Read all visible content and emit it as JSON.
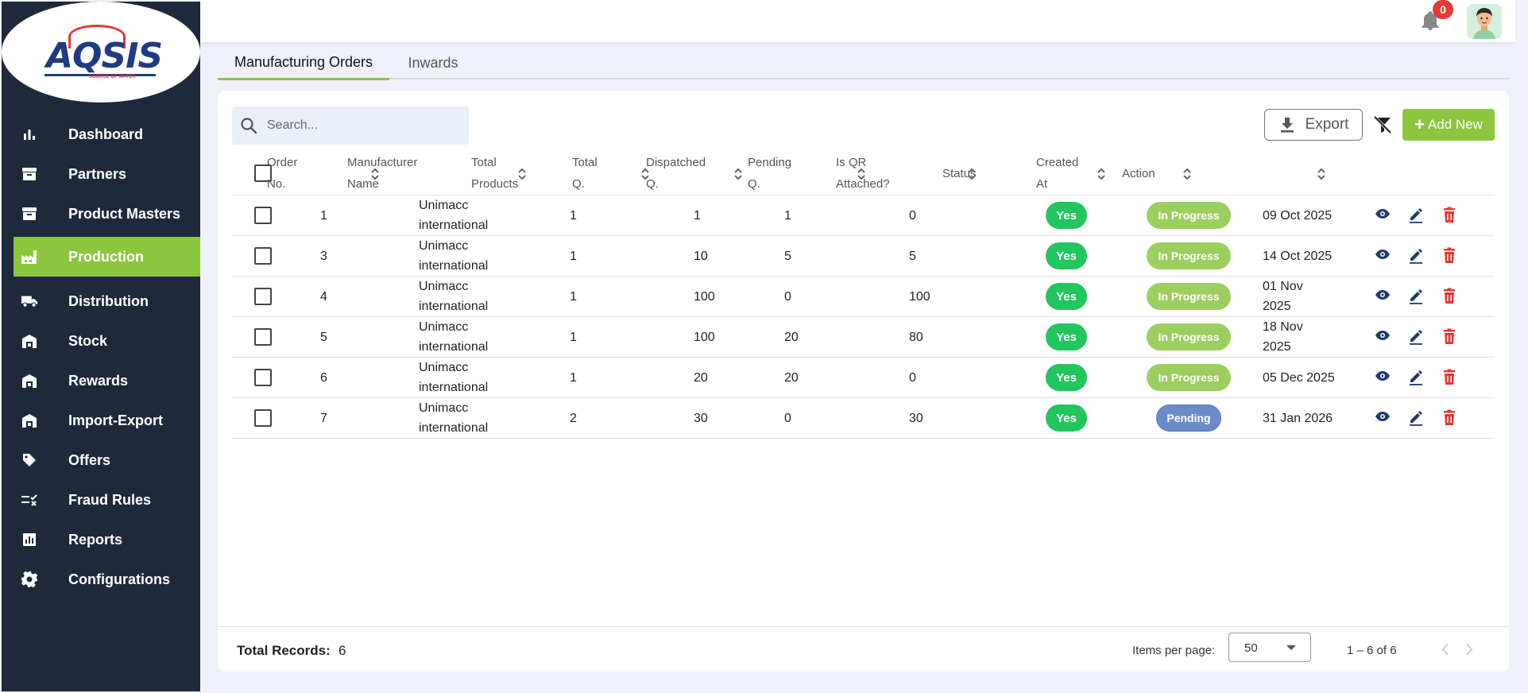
{
  "brand": {
    "logo_text": "AQSIS",
    "logo_tagline": "SOURCE OF WATER"
  },
  "sidebar": {
    "items": [
      {
        "label": "Dashboard",
        "icon": "bar-chart-icon",
        "active": false
      },
      {
        "label": "Partners",
        "icon": "archive-icon",
        "active": false
      },
      {
        "label": "Product Masters",
        "icon": "archive-icon",
        "active": false
      },
      {
        "label": "Production",
        "icon": "factory-icon",
        "active": true
      },
      {
        "label": "Distribution",
        "icon": "truck-icon",
        "active": false
      },
      {
        "label": "Stock",
        "icon": "warehouse-icon",
        "active": false
      },
      {
        "label": "Rewards",
        "icon": "warehouse-icon",
        "active": false
      },
      {
        "label": "Import-Export",
        "icon": "warehouse-icon",
        "active": false
      },
      {
        "label": "Offers",
        "icon": "tag-icon",
        "active": false
      },
      {
        "label": "Fraud Rules",
        "icon": "rule-list-icon",
        "active": false
      },
      {
        "label": "Reports",
        "icon": "report-icon",
        "active": false
      },
      {
        "label": "Configurations",
        "icon": "gear-icon",
        "active": false
      }
    ]
  },
  "header": {
    "notification_count": "0"
  },
  "tabs": [
    {
      "label": "Manufacturing Orders",
      "active": true
    },
    {
      "label": "Inwards",
      "active": false
    }
  ],
  "toolbar": {
    "search_placeholder": "Search...",
    "export_label": "Export",
    "add_label": "Add New"
  },
  "table": {
    "headers": [
      {
        "line1": "Order",
        "line2": "No."
      },
      {
        "line1": "Manufacturer",
        "line2": "Name"
      },
      {
        "line1": "Total",
        "line2": "Products"
      },
      {
        "line1": "Total",
        "line2": "Q."
      },
      {
        "line1": "Dispatched",
        "line2": "Q."
      },
      {
        "line1": "Pending",
        "line2": "Q."
      },
      {
        "line1": "Is QR",
        "line2": "Attached?"
      },
      {
        "line1": "Status",
        "line2": ""
      },
      {
        "line1": "Created",
        "line2": "At"
      },
      {
        "line1": "Action",
        "line2": ""
      }
    ],
    "rows": [
      {
        "order_no": "1",
        "manufacturer_1": "Unimacc",
        "manufacturer_2": "international",
        "total_products": "1",
        "total_q": "1",
        "dispatched_q": "1",
        "pending_q": "0",
        "qr": "Yes",
        "status": "In Progress",
        "created_1": "09 Oct 2025",
        "created_2": ""
      },
      {
        "order_no": "3",
        "manufacturer_1": "Unimacc",
        "manufacturer_2": "international",
        "total_products": "1",
        "total_q": "10",
        "dispatched_q": "5",
        "pending_q": "5",
        "qr": "Yes",
        "status": "In Progress",
        "created_1": "14 Oct 2025",
        "created_2": ""
      },
      {
        "order_no": "4",
        "manufacturer_1": "Unimacc",
        "manufacturer_2": "international",
        "total_products": "1",
        "total_q": "100",
        "dispatched_q": "0",
        "pending_q": "100",
        "qr": "Yes",
        "status": "In Progress",
        "created_1": "01 Nov",
        "created_2": "2025"
      },
      {
        "order_no": "5",
        "manufacturer_1": "Unimacc",
        "manufacturer_2": "international",
        "total_products": "1",
        "total_q": "100",
        "dispatched_q": "20",
        "pending_q": "80",
        "qr": "Yes",
        "status": "In Progress",
        "created_1": "18 Nov",
        "created_2": "2025"
      },
      {
        "order_no": "6",
        "manufacturer_1": "Unimacc",
        "manufacturer_2": "international",
        "total_products": "1",
        "total_q": "20",
        "dispatched_q": "20",
        "pending_q": "0",
        "qr": "Yes",
        "status": "In Progress",
        "created_1": "05 Dec 2025",
        "created_2": ""
      },
      {
        "order_no": "7",
        "manufacturer_1": "Unimacc",
        "manufacturer_2": "international",
        "total_products": "2",
        "total_q": "30",
        "dispatched_q": "0",
        "pending_q": "30",
        "qr": "Yes",
        "status": "Pending",
        "created_1": "31 Jan 2026",
        "created_2": ""
      }
    ]
  },
  "footer": {
    "total_label": "Total Records:",
    "total_value": "6",
    "items_per_page_label": "Items per page:",
    "items_per_page_value": "50",
    "range": "1 – 6 of 6"
  },
  "colors": {
    "sidebar_bg": "#1e293b",
    "accent_green": "#8cc63f",
    "yes_green": "#22c55e",
    "in_progress": "#9ccf5f",
    "pending": "#6b8cc9",
    "view_icon": "#1e3a6e",
    "edit_icon": "#1e3a6e",
    "delete_icon": "#e53935"
  }
}
